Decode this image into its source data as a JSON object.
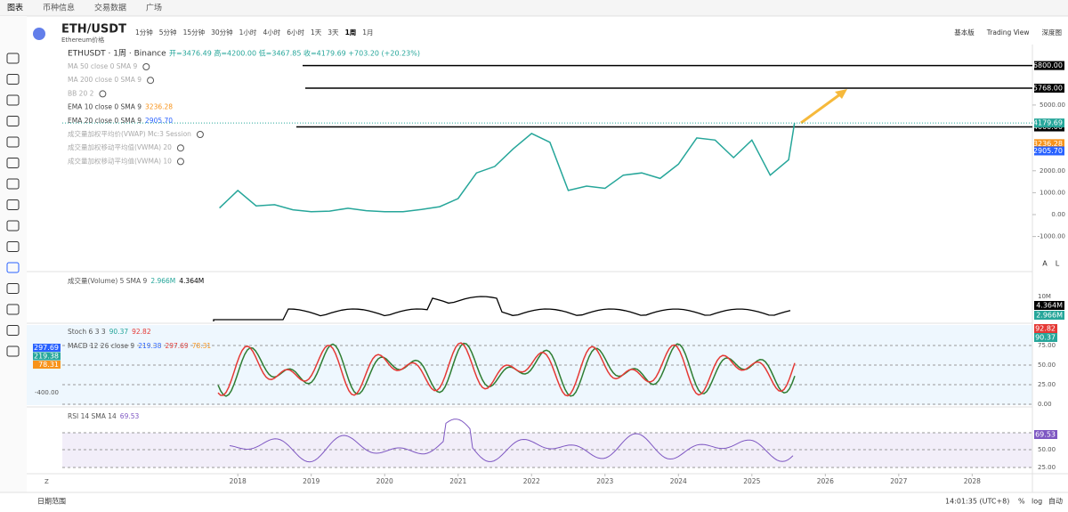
{
  "top_tabs": [
    "图表",
    "币种信息",
    "交易数据",
    "广场"
  ],
  "symbol": "ETH/USDT",
  "symbol_sub": "Ethereum价格",
  "intervals": [
    "1分钟",
    "5分钟",
    "15分钟",
    "30分钟",
    "1小时",
    "4小时",
    "6小时",
    "1天",
    "3天",
    "1周",
    "1月"
  ],
  "active_interval_index": 9,
  "views": [
    "基本版",
    "Trading View",
    "深度图"
  ],
  "legend": {
    "title": "ETHUSDT · 1周 · Binance",
    "ohlc": "开=3476.49 高=4200.00 低=3467.85 收=4179.69 +703.20 (+20.23%)"
  },
  "indicators": [
    {
      "label": "MA 50 close 0 SMA 9",
      "hidden": true
    },
    {
      "label": "MA 200 close 0 SMA 9",
      "hidden": true
    },
    {
      "label": "BB 20 2",
      "hidden": true
    },
    {
      "label": "EMA 10 close 0 SMA 9",
      "value": "3236.28",
      "color": "#f7931a",
      "hidden": false
    },
    {
      "label": "EMA 20 close 0 SMA 9",
      "value": "2905.70",
      "color": "#2962ff",
      "hidden": false
    },
    {
      "label": "成交量加权平均价(VWAP) Mc:3 Session",
      "hidden": true
    },
    {
      "label": "成交量加权移动平均值(VWMA) 20",
      "hidden": true
    },
    {
      "label": "成交量加权移动平均值(VWMA) 10",
      "hidden": true
    }
  ],
  "chart_data": {
    "type": "line",
    "color": "#26a69a",
    "x": [
      2017.75,
      2018.0,
      2018.25,
      2018.5,
      2018.75,
      2019.0,
      2019.25,
      2019.5,
      2019.75,
      2020.0,
      2020.25,
      2020.5,
      2020.75,
      2021.0,
      2021.25,
      2021.5,
      2021.75,
      2022.0,
      2022.25,
      2022.5,
      2022.75,
      2023.0,
      2023.25,
      2023.5,
      2023.75,
      2024.0,
      2024.25,
      2024.5,
      2024.75,
      2025.0,
      2025.25,
      2025.5,
      2025.58
    ],
    "values": [
      300,
      1100,
      400,
      450,
      220,
      130,
      160,
      290,
      180,
      130,
      130,
      230,
      360,
      730,
      1900,
      2200,
      3000,
      3700,
      3300,
      1100,
      1300,
      1200,
      1800,
      1900,
      1650,
      2300,
      3500,
      3400,
      2600,
      3400,
      1800,
      2500,
      4179.69
    ],
    "xlim": [
      2015.61,
      2028.82
    ],
    "xticks": [
      2018,
      2019,
      2020,
      2021,
      2022,
      2023,
      2024,
      2025,
      2026,
      2027,
      2028
    ],
    "ylim": [
      -2600,
      7760
    ],
    "yticks": [
      {
        "value": -1000,
        "label": "-1000.00"
      },
      {
        "value": 0,
        "label": "0.00"
      },
      {
        "value": 1000,
        "label": "1000.00"
      },
      {
        "value": 2000,
        "label": "2000.00"
      },
      {
        "value": 5000,
        "label": "5000.00"
      }
    ],
    "levels": [
      6800,
      5768,
      4000
    ],
    "level_labels": [
      "6800.00",
      "5768.00",
      "4000.00"
    ]
  },
  "price_tags": [
    {
      "label": "4179.69",
      "value": 4179.69,
      "color": "#26a69a"
    },
    {
      "label": "3236.28",
      "value": 3236.28,
      "color": "#f7931a"
    },
    {
      "label": "2905.70",
      "value": 2905.7,
      "color": "#2962ff"
    }
  ],
  "scale_buttons": [
    "A",
    "L"
  ],
  "volume": {
    "label": "成交量(Volume) 5 SMA 9",
    "values": [
      "2.966M",
      "4.364M"
    ],
    "axis": "10M"
  },
  "stoch": {
    "label": "Stoch 6 3 3",
    "values": [
      "90.37",
      "92.82"
    ]
  },
  "macd": {
    "label": "MACD 12 26 close 9",
    "values": [
      "219.38",
      "297.69",
      "78.31"
    ],
    "axis": "-400.00"
  },
  "osc_axis": [
    "75.00",
    "50.00",
    "25.00",
    "0.00"
  ],
  "rsi": {
    "label": "RSI 14 SMA 14",
    "value": "69.53",
    "axis": [
      "75.00",
      "50.00",
      "25.00"
    ]
  },
  "bottom": {
    "z": "Z",
    "range": "日期范围",
    "time": "14:01:35 (UTC+8)",
    "pct": "%",
    "log": "log",
    "auto": "自动"
  }
}
